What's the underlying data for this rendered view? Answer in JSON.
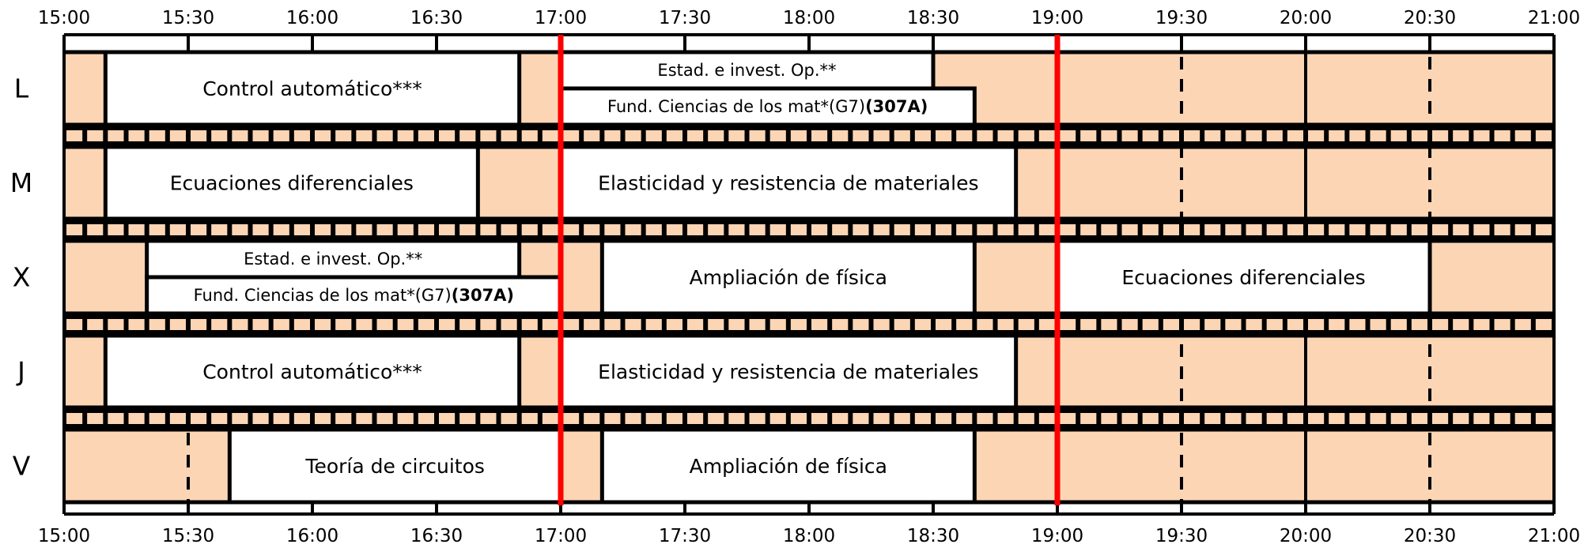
{
  "time_labels": [
    "15:00",
    "15:30",
    "16:00",
    "16:30",
    "17:00",
    "17:30",
    "18:00",
    "18:30",
    "19:00",
    "19:30",
    "20:00",
    "20:30",
    "21:00"
  ],
  "days": [
    "L",
    "M",
    "X",
    "J",
    "V"
  ],
  "colors": {
    "empty": "#fcd5b5",
    "course": "#ffffff",
    "line": "#000000",
    "highlight": "#ff0000"
  },
  "highlight_times": [
    "17:00",
    "19:00"
  ],
  "dashed_times": [
    "15:30",
    "16:30",
    "17:30",
    "18:30",
    "19:30",
    "20:30"
  ],
  "courses": [
    {
      "day": "L",
      "start": "15:10",
      "end": "16:50",
      "half": "full",
      "label": "Control automático***"
    },
    {
      "day": "L",
      "start": "17:00",
      "end": "18:30",
      "half": "top",
      "label": "Estad. e invest. Op.**"
    },
    {
      "day": "L",
      "start": "17:00",
      "end": "18:40",
      "half": "bottom",
      "label": "Fund. Ciencias de los mat*(G7)",
      "room": "(307A)"
    },
    {
      "day": "M",
      "start": "15:10",
      "end": "16:40",
      "half": "full",
      "label": "Ecuaciones diferenciales"
    },
    {
      "day": "M",
      "start": "17:00",
      "end": "18:50",
      "half": "full",
      "label": "Elasticidad y resistencia de materiales"
    },
    {
      "day": "X",
      "start": "15:20",
      "end": "16:50",
      "half": "top",
      "label": "Estad. e invest. Op.**"
    },
    {
      "day": "X",
      "start": "15:20",
      "end": "17:00",
      "half": "bottom",
      "label": "Fund. Ciencias de los mat*(G7)",
      "room": "(307A)"
    },
    {
      "day": "X",
      "start": "17:10",
      "end": "18:40",
      "half": "full",
      "label": "Ampliación de física"
    },
    {
      "day": "X",
      "start": "19:00",
      "end": "20:30",
      "half": "full",
      "label": "Ecuaciones diferenciales"
    },
    {
      "day": "J",
      "start": "15:10",
      "end": "16:50",
      "half": "full",
      "label": "Control automático***"
    },
    {
      "day": "J",
      "start": "17:00",
      "end": "18:50",
      "half": "full",
      "label": "Elasticidad y resistencia de materiales"
    },
    {
      "day": "V",
      "start": "15:40",
      "end": "17:00",
      "half": "full",
      "label": "Teoría de circuitos"
    },
    {
      "day": "V",
      "start": "17:10",
      "end": "18:40",
      "half": "full",
      "label": "Ampliación de física"
    }
  ]
}
